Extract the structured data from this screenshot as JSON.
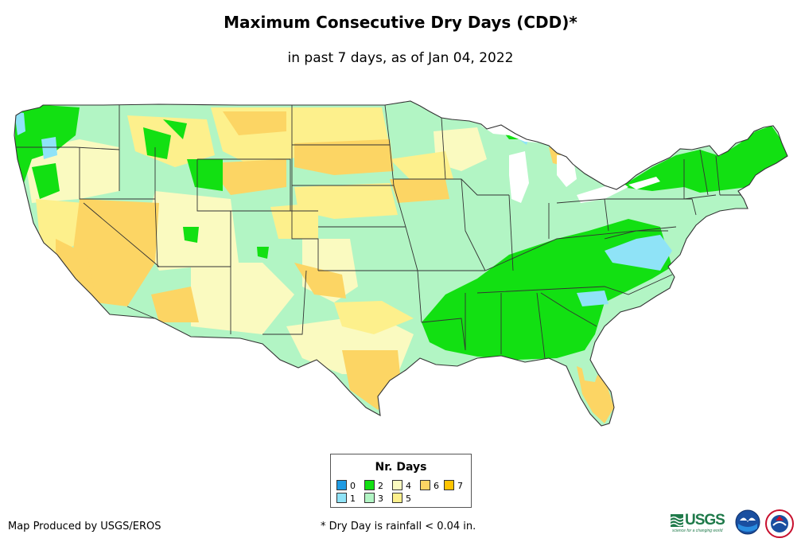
{
  "title": "Maximum Consecutive Dry Days (CDD)*",
  "subtitle": "in past 7 days, as of Jan 04, 2022",
  "legend": {
    "title": "Nr. Days",
    "items": [
      {
        "label": "0",
        "color": "#1f9be3"
      },
      {
        "label": "1",
        "color": "#8fe3f7"
      },
      {
        "label": "2",
        "color": "#12e012"
      },
      {
        "label": "3",
        "color": "#b2f5c4"
      },
      {
        "label": "4",
        "color": "#fafac0"
      },
      {
        "label": "5",
        "color": "#fdf08c"
      },
      {
        "label": "6",
        "color": "#fcd564"
      },
      {
        "label": "7",
        "color": "#ffc400"
      }
    ]
  },
  "credit": "Map Produced by USGS/EROS",
  "footnote": "* Dry Day is rainfall < 0.04 in.",
  "logos": {
    "usgs": "USGS",
    "usgs_tagline": "science for a changing world",
    "noaa": "noaa",
    "nws": "NWS"
  }
}
